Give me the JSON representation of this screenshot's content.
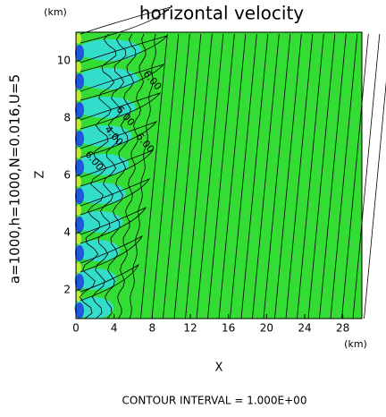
{
  "chart_data": {
    "type": "contour",
    "title": "horizontal velocity",
    "side_label": "a=1000,h=1000,N=0.016,U=5",
    "x_label": "X",
    "y_label": "Z",
    "x_unit": "(km)",
    "y_unit": "(km)",
    "footer": "CONTOUR INTERVAL = 1.000E+00",
    "xlim": [
      0,
      30
    ],
    "ylim": [
      1,
      11
    ],
    "xticks": [
      0,
      4,
      8,
      12,
      16,
      20,
      24,
      28
    ],
    "yticks": [
      2,
      4,
      6,
      8,
      10
    ],
    "contour_labels": [
      "6.00",
      "6.00",
      "6.00",
      "4.00",
      "6.00"
    ],
    "background_color": "#33dd33",
    "grid": false
  }
}
